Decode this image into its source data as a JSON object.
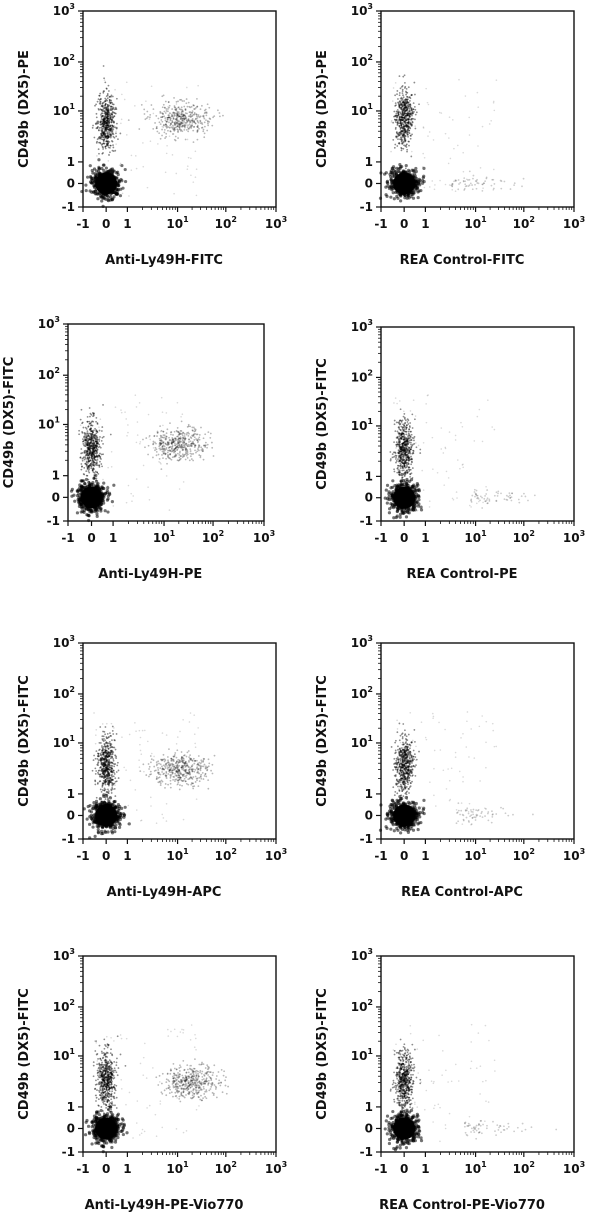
{
  "tick_labels": {
    "x": [
      "-1",
      "0",
      "1",
      "10",
      "1",
      "10",
      "2",
      "10",
      "3"
    ],
    "y": [
      "-1",
      "0",
      "1",
      "10",
      "1",
      "10",
      "2",
      "10",
      "3"
    ]
  },
  "chart_data": [
    {
      "type": "scatter",
      "xlabel": "Anti-Ly49H-FITC",
      "ylabel": "CD49b (DX5)-PE",
      "scale": "biexponential",
      "xlim": [
        -1,
        1000
      ],
      "ylim": [
        -1,
        1000
      ],
      "populations": [
        {
          "name": "",
          "x_center": 0,
          "y_center": 0,
          "density": "very high"
        },
        {
          "name": "",
          "x_center": 0,
          "y_center": 5,
          "density": "high"
        },
        {
          "name": "",
          "x_center": 12,
          "y_center": 7,
          "density": "medium"
        }
      ]
    },
    {
      "type": "scatter",
      "xlabel": "REA Control-FITC",
      "ylabel": "CD49b (DX5)-PE",
      "scale": "biexponential",
      "xlim": [
        -1,
        1000
      ],
      "ylim": [
        -1,
        1000
      ],
      "populations": [
        {
          "name": "",
          "x_center": 0,
          "y_center": 0,
          "density": "very high"
        },
        {
          "name": "",
          "x_center": 0,
          "y_center": 6,
          "density": "high"
        },
        {
          "name": "",
          "x_center": 8,
          "y_center": 0,
          "density": "low"
        }
      ]
    },
    {
      "type": "scatter",
      "xlabel": "Anti-Ly49H-PE",
      "ylabel": "CD49b (DX5)-FITC",
      "scale": "biexponential",
      "xlim": [
        -1,
        1000
      ],
      "ylim": [
        -1,
        1000
      ],
      "populations": [
        {
          "name": "",
          "x_center": 0,
          "y_center": 0,
          "density": "very high"
        },
        {
          "name": "",
          "x_center": 0,
          "y_center": 3,
          "density": "high"
        },
        {
          "name": "",
          "x_center": 20,
          "y_center": 4,
          "density": "medium"
        }
      ]
    },
    {
      "type": "scatter",
      "xlabel": "REA Control-PE",
      "ylabel": "CD49b (DX5)-FITC",
      "scale": "biexponential",
      "xlim": [
        -1,
        1000
      ],
      "ylim": [
        -1,
        1000
      ],
      "populations": [
        {
          "name": "",
          "x_center": 0,
          "y_center": 0,
          "density": "very high"
        },
        {
          "name": "",
          "x_center": 0,
          "y_center": 3,
          "density": "high"
        },
        {
          "name": "",
          "x_center": 20,
          "y_center": 0,
          "density": "low"
        }
      ]
    },
    {
      "type": "scatter",
      "xlabel": "Anti-Ly49H-APC",
      "ylabel": "CD49b (DX5)-FITC",
      "scale": "biexponential",
      "xlim": [
        -1,
        1000
      ],
      "ylim": [
        -1,
        1000
      ],
      "populations": [
        {
          "name": "",
          "x_center": 0,
          "y_center": 0,
          "density": "very high"
        },
        {
          "name": "",
          "x_center": 0,
          "y_center": 3,
          "density": "high"
        },
        {
          "name": "",
          "x_center": 12,
          "y_center": 3,
          "density": "medium"
        }
      ]
    },
    {
      "type": "scatter",
      "xlabel": "REA Control-APC",
      "ylabel": "CD49b (DX5)-FITC",
      "scale": "biexponential",
      "xlim": [
        -1,
        1000
      ],
      "ylim": [
        -1,
        1000
      ],
      "populations": [
        {
          "name": "",
          "x_center": 0,
          "y_center": 0,
          "density": "very high"
        },
        {
          "name": "",
          "x_center": 0,
          "y_center": 3,
          "density": "high"
        },
        {
          "name": "",
          "x_center": 10,
          "y_center": 0,
          "density": "low"
        }
      ]
    },
    {
      "type": "scatter",
      "xlabel": "Anti-Ly49H-PE-Vio770",
      "ylabel": "CD49b (DX5)-FITC",
      "scale": "biexponential",
      "xlim": [
        -1,
        1000
      ],
      "ylim": [
        -1,
        1000
      ],
      "populations": [
        {
          "name": "",
          "x_center": 0,
          "y_center": 0,
          "density": "very high"
        },
        {
          "name": "",
          "x_center": 0,
          "y_center": 3,
          "density": "high"
        },
        {
          "name": "",
          "x_center": 20,
          "y_center": 3,
          "density": "medium"
        }
      ]
    },
    {
      "type": "scatter",
      "xlabel": "REA Control-PE-Vio770",
      "ylabel": "CD49b (DX5)-FITC",
      "scale": "biexponential",
      "xlim": [
        -1,
        1000
      ],
      "ylim": [
        -1,
        1000
      ],
      "populations": [
        {
          "name": "",
          "x_center": 0,
          "y_center": 0,
          "density": "very high"
        },
        {
          "name": "",
          "x_center": 0,
          "y_center": 3,
          "density": "high"
        },
        {
          "name": "",
          "x_center": 15,
          "y_center": 0,
          "density": "low"
        }
      ]
    }
  ]
}
